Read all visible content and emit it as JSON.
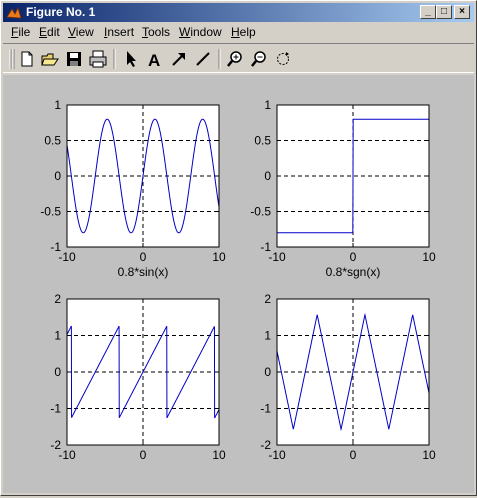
{
  "window": {
    "title": "Figure No. 1",
    "minimize_glyph": "_",
    "maximize_glyph": "□",
    "close_glyph": "×"
  },
  "menubar": {
    "items": [
      {
        "label": "File",
        "underline": "F",
        "rest": "ile"
      },
      {
        "label": "Edit",
        "underline": "E",
        "rest": "dit"
      },
      {
        "label": "View",
        "underline": "V",
        "rest": "iew"
      },
      {
        "label": "Insert",
        "underline": "I",
        "rest": "nsert"
      },
      {
        "label": "Tools",
        "underline": "T",
        "rest": "ools"
      },
      {
        "label": "Window",
        "underline": "W",
        "rest": "indow"
      },
      {
        "label": "Help",
        "underline": "H",
        "rest": "elp"
      }
    ]
  },
  "toolbar": {
    "icons": [
      "new-file-icon",
      "open-folder-icon",
      "save-icon",
      "print-icon",
      "arrow-select-icon",
      "text-tool-icon",
      "arrow-tool-icon",
      "line-tool-icon",
      "zoom-in-icon",
      "zoom-out-icon",
      "rotate-icon"
    ],
    "text_tool_glyph": "A"
  },
  "colors": {
    "line": "#0000c8",
    "figure_bg": "#c0c0c0",
    "titlebar_start": "#0a246a"
  },
  "chart_data": [
    {
      "type": "line",
      "function": "sin",
      "xlabel": "0.8*sin(x)",
      "xlim": [
        -10,
        10
      ],
      "ylim": [
        -1,
        1
      ],
      "xticks": [
        -10,
        0,
        10
      ],
      "yticks": [
        -1,
        -0.5,
        0,
        0.5,
        1
      ],
      "ytick_labels": [
        "-1",
        "-0.5",
        "0",
        "0.5",
        "1"
      ],
      "grid": true,
      "amplitude": 0.8
    },
    {
      "type": "line",
      "function": "sgn",
      "xlabel": "0.8*sgn(x)",
      "xlim": [
        -10,
        10
      ],
      "ylim": [
        -1,
        1
      ],
      "xticks": [
        -10,
        0,
        10
      ],
      "yticks": [
        -1,
        -0.5,
        0,
        0.5,
        1
      ],
      "ytick_labels": [
        "-1",
        "-0.5",
        "0",
        "0.5",
        "1"
      ],
      "grid": true,
      "amplitude": 0.8
    },
    {
      "type": "line",
      "function": "sawtooth",
      "xlabel": "",
      "xlim": [
        -10,
        10
      ],
      "ylim": [
        -2,
        2
      ],
      "xticks": [
        -10,
        0,
        10
      ],
      "yticks": [
        -2,
        -1,
        0,
        1,
        2
      ],
      "ytick_labels": [
        "-2",
        "-1",
        "0",
        "1",
        "2"
      ],
      "grid": true,
      "amplitude": 1.26
    },
    {
      "type": "line",
      "function": "triangle",
      "xlabel": "",
      "xlim": [
        -10,
        10
      ],
      "ylim": [
        -2,
        2
      ],
      "xticks": [
        -10,
        0,
        10
      ],
      "yticks": [
        -2,
        -1,
        0,
        1,
        2
      ],
      "ytick_labels": [
        "-2",
        "-1",
        "0",
        "1",
        "2"
      ],
      "grid": true,
      "amplitude": 1.57
    }
  ]
}
